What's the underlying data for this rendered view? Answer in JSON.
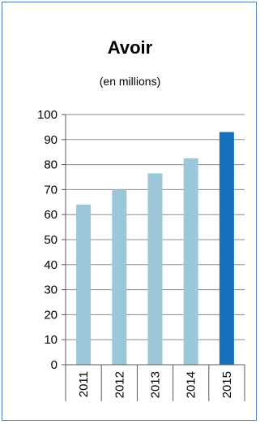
{
  "chart_data": {
    "type": "bar",
    "title": "Avoir",
    "subtitle": "(en millions)",
    "categories": [
      "2011",
      "2012",
      "2013",
      "2014",
      "2015"
    ],
    "values": [
      64,
      70,
      76.5,
      82.5,
      93
    ],
    "ylim": [
      0,
      100
    ],
    "yticks": [
      "0",
      "10",
      "20",
      "30",
      "40",
      "50",
      "60",
      "70",
      "80",
      "90",
      "100"
    ],
    "grid": true,
    "legend": "none",
    "colors": {
      "bar": "#9bc7d9",
      "highlight": "#1672bf",
      "grid": "#8c8c8c",
      "axis": "#595959",
      "frame": "#4a7ebb"
    },
    "highlight_category": "2015"
  }
}
